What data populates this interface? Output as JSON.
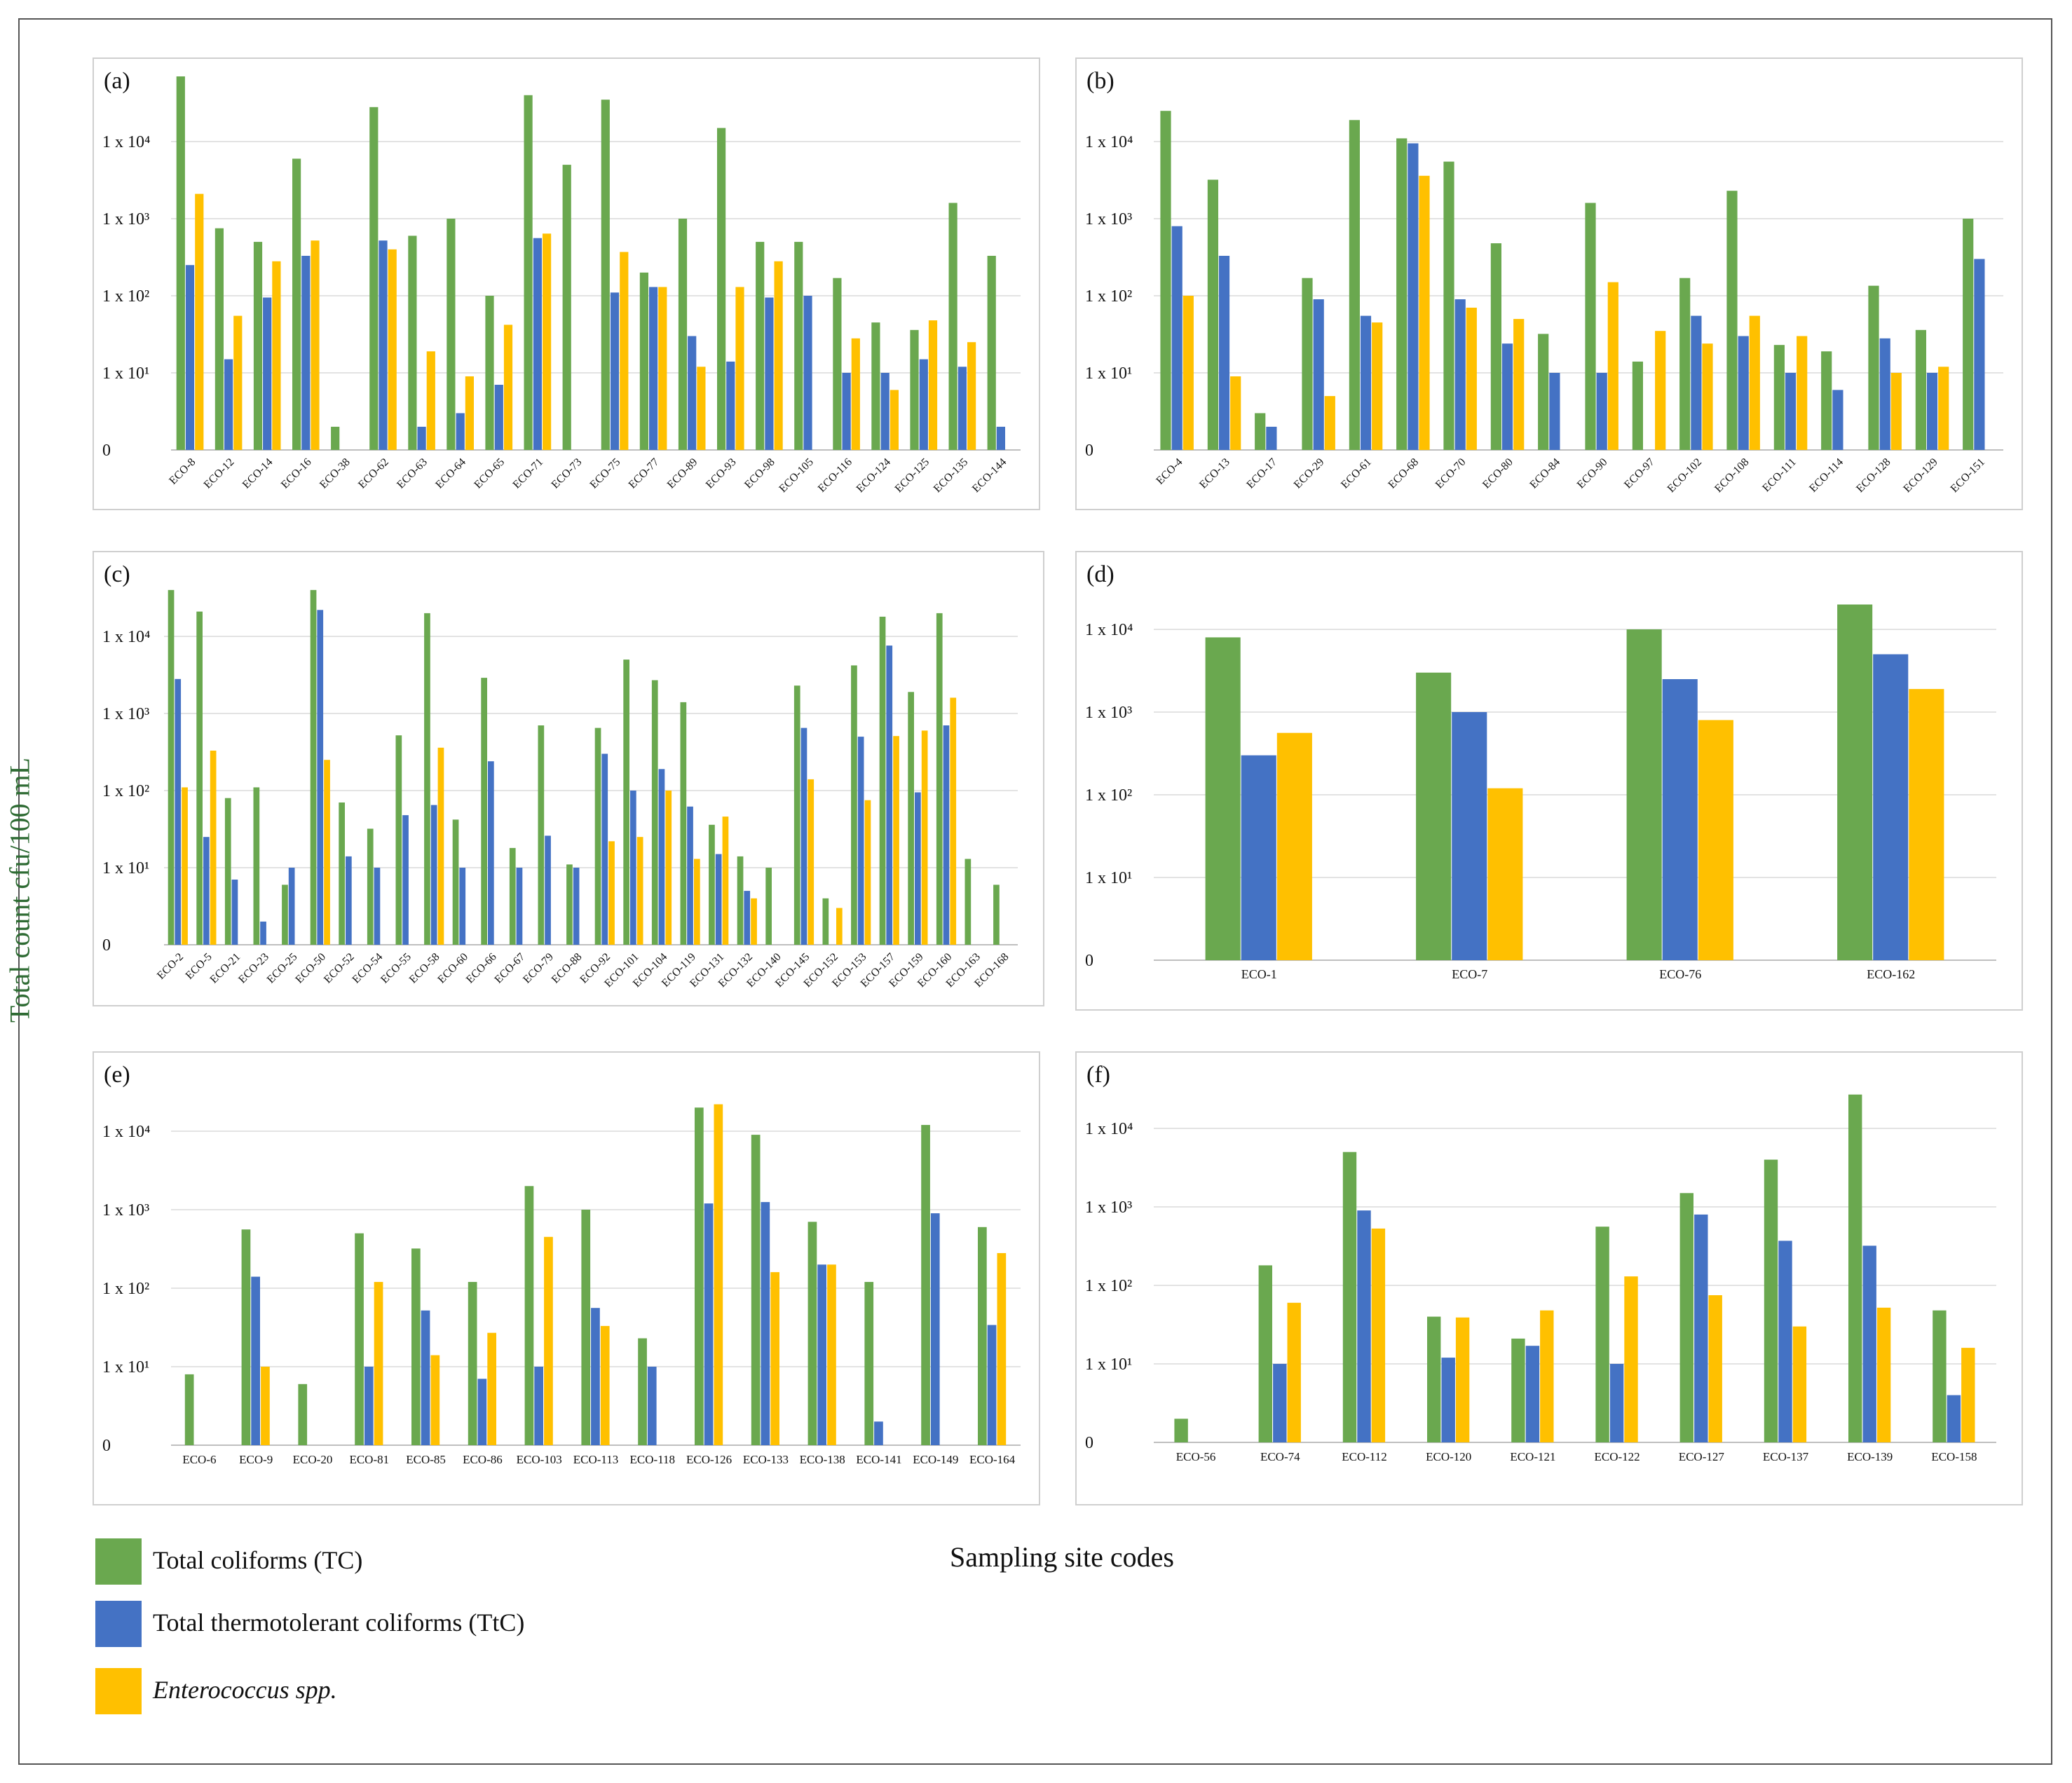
{
  "y_axis_label": "Total count cfu/100 mL",
  "x_axis_label": "Sampling site codes",
  "legend": [
    {
      "label": "Total coliforms (TC)",
      "color": "#6aa84f",
      "italic": false
    },
    {
      "label": "Total thermotolerant coliforms (TtC)",
      "color": "#4472c4",
      "italic": false
    },
    {
      "label": "Enterococcus spp.",
      "color": "#ffc000",
      "italic": true
    }
  ],
  "chart_data": [
    {
      "type": "bar",
      "panel": "(a)",
      "scale": "log",
      "ylim": [
        1,
        100000
      ],
      "ytick_labels": [
        "0",
        "1 x 10¹",
        "1 x 10²",
        "1 x 10³",
        "1 x 10⁴"
      ],
      "categories": [
        "ECO-8",
        "ECO-12",
        "ECO-14",
        "ECO-16",
        "ECO-38",
        "ECO-62",
        "ECO-63",
        "ECO-64",
        "ECO-65",
        "ECO-71",
        "ECO-73",
        "ECO-75",
        "ECO-77",
        "ECO-89",
        "ECO-93",
        "ECO-98",
        "ECO-105",
        "ECO-116",
        "ECO-124",
        "ECO-125",
        "ECO-135",
        "ECO-144"
      ],
      "series": [
        {
          "name": "Total coliforms (TC)",
          "values": [
            70000,
            750,
            500,
            6000,
            2,
            28000,
            600,
            1000,
            100,
            40000,
            5000,
            35000,
            200,
            1000,
            15000,
            500,
            500,
            170,
            45,
            36,
            1600,
            330
          ]
        },
        {
          "name": "Total thermotolerant coliforms (TtC)",
          "values": [
            250,
            15,
            95,
            330,
            null,
            520,
            2,
            3,
            7,
            560,
            null,
            110,
            130,
            30,
            14,
            95,
            100,
            10,
            10,
            15,
            12,
            2
          ]
        },
        {
          "name": "Enterococcus spp.",
          "values": [
            2100,
            55,
            280,
            520,
            null,
            400,
            19,
            9,
            42,
            640,
            null,
            370,
            130,
            12,
            130,
            280,
            null,
            28,
            6,
            48,
            25,
            null
          ]
        }
      ]
    },
    {
      "type": "bar",
      "panel": "(b)",
      "scale": "log",
      "ylim": [
        1,
        100000
      ],
      "ytick_labels": [
        "0",
        "1 x 10¹",
        "1 x 10²",
        "1 x 10³",
        "1 x 10⁴"
      ],
      "categories": [
        "ECO-4",
        "ECO-13",
        "ECO-17",
        "ECO-29",
        "ECO-61",
        "ECO-68",
        "ECO-70",
        "ECO-80",
        "ECO-84",
        "ECO-90",
        "ECO-97",
        "ECO-102",
        "ECO-108",
        "ECO-111",
        "ECO-114",
        "ECO-128",
        "ECO-129",
        "ECO-151"
      ],
      "series": [
        {
          "name": "Total coliforms (TC)",
          "values": [
            25000,
            3200,
            3,
            170,
            19000,
            11000,
            5500,
            480,
            32,
            1600,
            14,
            170,
            2300,
            23,
            19,
            135,
            36,
            1000
          ]
        },
        {
          "name": "Total thermotolerant coliforms (TtC)",
          "values": [
            800,
            330,
            2,
            90,
            55,
            9500,
            90,
            24,
            10,
            10,
            null,
            55,
            30,
            10,
            6,
            28,
            10,
            300
          ]
        },
        {
          "name": "Enterococcus spp.",
          "values": [
            100,
            9,
            null,
            5,
            45,
            3600,
            70,
            50,
            null,
            150,
            35,
            24,
            55,
            30,
            null,
            10,
            12,
            null
          ]
        }
      ]
    },
    {
      "type": "bar",
      "panel": "(c)",
      "scale": "log",
      "ylim": [
        1,
        100000
      ],
      "ytick_labels": [
        "0",
        "1 x 10¹",
        "1 x 10²",
        "1 x 10³",
        "1 x 10⁴"
      ],
      "categories": [
        "ECO-2",
        "ECO-5",
        "ECO-21",
        "ECO-23",
        "ECO-25",
        "ECO-50",
        "ECO-52",
        "ECO-54",
        "ECO-55",
        "ECO-58",
        "ECO-60",
        "ECO-66",
        "ECO-67",
        "ECO-79",
        "ECO-88",
        "ECO-92",
        "ECO-101",
        "ECO-104",
        "ECO-119",
        "ECO-131",
        "ECO-132",
        "ECO-140",
        "ECO-145",
        "ECO-152",
        "ECO-153",
        "ECO-157",
        "ECO-159",
        "ECO-160",
        "ECO-163",
        "ECO-168"
      ],
      "series": [
        {
          "name": "Total coliforms (TC)",
          "values": [
            40000,
            21000,
            80,
            110,
            6,
            40000,
            70,
            32,
            520,
            20000,
            42,
            2900,
            18,
            700,
            11,
            650,
            5000,
            2700,
            1400,
            36,
            14,
            10,
            2300,
            4,
            4200,
            18000,
            1900,
            20000,
            13,
            6
          ]
        },
        {
          "name": "Total thermotolerant coliforms (TtC)",
          "values": [
            2800,
            25,
            7,
            2,
            10,
            22000,
            14,
            10,
            48,
            65,
            10,
            240,
            10,
            26,
            10,
            300,
            100,
            190,
            62,
            15,
            5,
            null,
            650,
            null,
            500,
            7600,
            95,
            700,
            null,
            null
          ]
        },
        {
          "name": "Enterococcus spp.",
          "values": [
            110,
            330,
            null,
            null,
            null,
            250,
            null,
            null,
            null,
            360,
            null,
            null,
            null,
            null,
            null,
            22,
            25,
            100,
            13,
            46,
            4,
            null,
            140,
            3,
            75,
            510,
            600,
            1600,
            null,
            null
          ]
        }
      ]
    },
    {
      "type": "bar",
      "panel": "(d)",
      "scale": "log",
      "ylim": [
        1,
        100000
      ],
      "ytick_labels": [
        "0",
        "1 x 10¹",
        "1 x 10²",
        "1 x 10³",
        "1 x 10⁴"
      ],
      "categories": [
        "ECO-1",
        "ECO-7",
        "ECO-76",
        "ECO-162"
      ],
      "series": [
        {
          "name": "Total coliforms (TC)",
          "values": [
            8000,
            3000,
            10000,
            20000
          ]
        },
        {
          "name": "Total thermotolerant coliforms (TtC)",
          "values": [
            300,
            1000,
            2500,
            5000
          ]
        },
        {
          "name": "Enterococcus spp.",
          "values": [
            560,
            120,
            800,
            1900
          ]
        }
      ]
    },
    {
      "type": "bar",
      "panel": "(e)",
      "scale": "log",
      "ylim": [
        1,
        100000
      ],
      "ytick_labels": [
        "0",
        "1 x 10¹",
        "1 x 10²",
        "1 x 10³",
        "1 x 10⁴"
      ],
      "categories": [
        "ECO-6",
        "ECO-9",
        "ECO-20",
        "ECO-81",
        "ECO-85",
        "ECO-86",
        "ECO-103",
        "ECO-113",
        "ECO-118",
        "ECO-126",
        "ECO-133",
        "ECO-138",
        "ECO-141",
        "ECO-149",
        "ECO-164"
      ],
      "series": [
        {
          "name": "Total coliforms (TC)",
          "values": [
            8,
            560,
            6,
            500,
            320,
            120,
            2000,
            1000,
            23,
            20000,
            9000,
            700,
            120,
            12000,
            600
          ]
        },
        {
          "name": "Total thermotolerant coliforms (TtC)",
          "values": [
            null,
            140,
            null,
            10,
            52,
            7,
            10,
            56,
            10,
            1200,
            1250,
            200,
            2,
            900,
            34
          ]
        },
        {
          "name": "Enterococcus spp.",
          "values": [
            null,
            10,
            null,
            120,
            14,
            27,
            450,
            33,
            null,
            22000,
            160,
            200,
            null,
            null,
            280
          ]
        }
      ]
    },
    {
      "type": "bar",
      "panel": "(f)",
      "scale": "log",
      "ylim": [
        1,
        100000
      ],
      "ytick_labels": [
        "0",
        "1 x 10¹",
        "1 x 10²",
        "1 x 10³",
        "1 x 10⁴"
      ],
      "categories": [
        "ECO-56",
        "ECO-74",
        "ECO-112",
        "ECO-120",
        "ECO-121",
        "ECO-122",
        "ECO-127",
        "ECO-137",
        "ECO-139",
        "ECO-158"
      ],
      "series": [
        {
          "name": "Total coliforms (TC)",
          "values": [
            2,
            180,
            5000,
            40,
            21,
            560,
            1500,
            4000,
            27000,
            48
          ]
        },
        {
          "name": "Total thermotolerant coliforms (TtC)",
          "values": [
            null,
            10,
            900,
            12,
            17,
            10,
            800,
            370,
            320,
            4
          ]
        },
        {
          "name": "Enterococcus spp.",
          "values": [
            null,
            60,
            530,
            39,
            48,
            130,
            75,
            30,
            52,
            16
          ]
        }
      ]
    }
  ]
}
